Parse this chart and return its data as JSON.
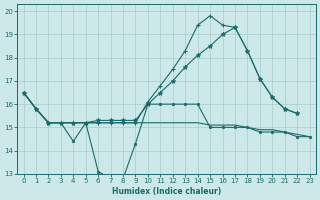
{
  "xlabel": "Humidex (Indice chaleur)",
  "bg_color": "#cce8e8",
  "line_color": "#1a6b6b",
  "grid_color": "#aacccc",
  "xlim": [
    -0.5,
    23.5
  ],
  "ylim": [
    13,
    20.3
  ],
  "xticks": [
    0,
    1,
    2,
    3,
    4,
    5,
    6,
    7,
    8,
    9,
    10,
    11,
    12,
    13,
    14,
    15,
    16,
    17,
    18,
    19,
    20,
    21,
    22,
    23
  ],
  "yticks": [
    13,
    14,
    15,
    16,
    17,
    18,
    19,
    20
  ],
  "line1_x": [
    0,
    1,
    2,
    3,
    4,
    5,
    6,
    7,
    8,
    9,
    10,
    11,
    12,
    13,
    14,
    15,
    16,
    17,
    18,
    19,
    20,
    21,
    22,
    23
  ],
  "line1_y": [
    16.5,
    15.8,
    15.2,
    15.2,
    14.4,
    15.2,
    13.1,
    12.8,
    12.8,
    14.3,
    16.0,
    16.0,
    16.0,
    16.0,
    16.0,
    15.0,
    15.0,
    15.0,
    15.0,
    14.8,
    14.8,
    14.8,
    14.6,
    14.6
  ],
  "line2_x": [
    0,
    1,
    2,
    3,
    4,
    5,
    6,
    7,
    8,
    9,
    10,
    11,
    12,
    13,
    14,
    15,
    16,
    17,
    18,
    19,
    20,
    21,
    22
  ],
  "line2_y": [
    16.5,
    15.8,
    15.2,
    15.2,
    15.2,
    15.2,
    15.2,
    15.2,
    15.2,
    15.2,
    16.1,
    16.8,
    17.5,
    18.3,
    19.4,
    19.8,
    19.4,
    19.3,
    18.3,
    17.1,
    16.3,
    15.8,
    15.6
  ],
  "line3_x": [
    0,
    1,
    2,
    3,
    4,
    5,
    6,
    7,
    8,
    9,
    10,
    11,
    12,
    13,
    14,
    15,
    16,
    17,
    18,
    19,
    20,
    21,
    22
  ],
  "line3_y": [
    16.5,
    15.8,
    15.2,
    15.2,
    15.2,
    15.2,
    15.3,
    15.3,
    15.3,
    15.3,
    16.0,
    16.5,
    17.0,
    17.6,
    18.1,
    18.5,
    19.0,
    19.3,
    18.3,
    17.1,
    16.3,
    15.8,
    15.6
  ],
  "line4_x": [
    0,
    1,
    2,
    3,
    4,
    5,
    6,
    7,
    8,
    9,
    10,
    11,
    12,
    13,
    14,
    15,
    16,
    17,
    18,
    19,
    20,
    21,
    22,
    23
  ],
  "line4_y": [
    16.5,
    15.8,
    15.2,
    15.2,
    15.2,
    15.2,
    15.2,
    15.2,
    15.2,
    15.2,
    15.2,
    15.2,
    15.2,
    15.2,
    15.2,
    15.1,
    15.1,
    15.1,
    15.0,
    14.9,
    14.9,
    14.8,
    14.7,
    14.6
  ]
}
